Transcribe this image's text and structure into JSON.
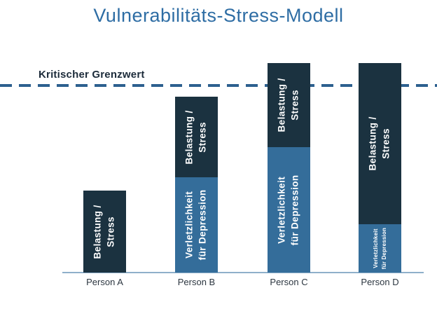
{
  "title": {
    "text": "Vulnerabilitäts-Stress-Modell",
    "color": "#2e6da4"
  },
  "threshold": {
    "label": "Kritischer Grenzwert",
    "line_color": "#2d608f",
    "label_color": "#1c2b3a"
  },
  "axis": {
    "color": "#8fb0ca"
  },
  "chart_data": {
    "type": "bar",
    "stacked": true,
    "title": "Vulnerabilitäts-Stress-Modell",
    "categories": [
      "Person A",
      "Person B",
      "Person C",
      "Person D"
    ],
    "series": [
      {
        "name": "Verletzlichkeit für Depression",
        "label_lines": [
          "Verletzlichkeit",
          "für Depression"
        ],
        "color": "#346d9a",
        "values": [
          0,
          51,
          67,
          26
        ]
      },
      {
        "name": "Belastung / Stress",
        "label_lines": [
          "Belastung /",
          "Stress"
        ],
        "color": "#1b3240",
        "values": [
          44,
          43,
          45,
          86
        ]
      }
    ],
    "threshold": {
      "label": "Kritischer Grenzwert",
      "value": 100,
      "style": "dashed"
    },
    "ylim": [
      0,
      112
    ],
    "units": "relative (Kritischer Grenzwert = 100)",
    "legend": "none",
    "grid": false,
    "axis_numbers_shown": false
  }
}
